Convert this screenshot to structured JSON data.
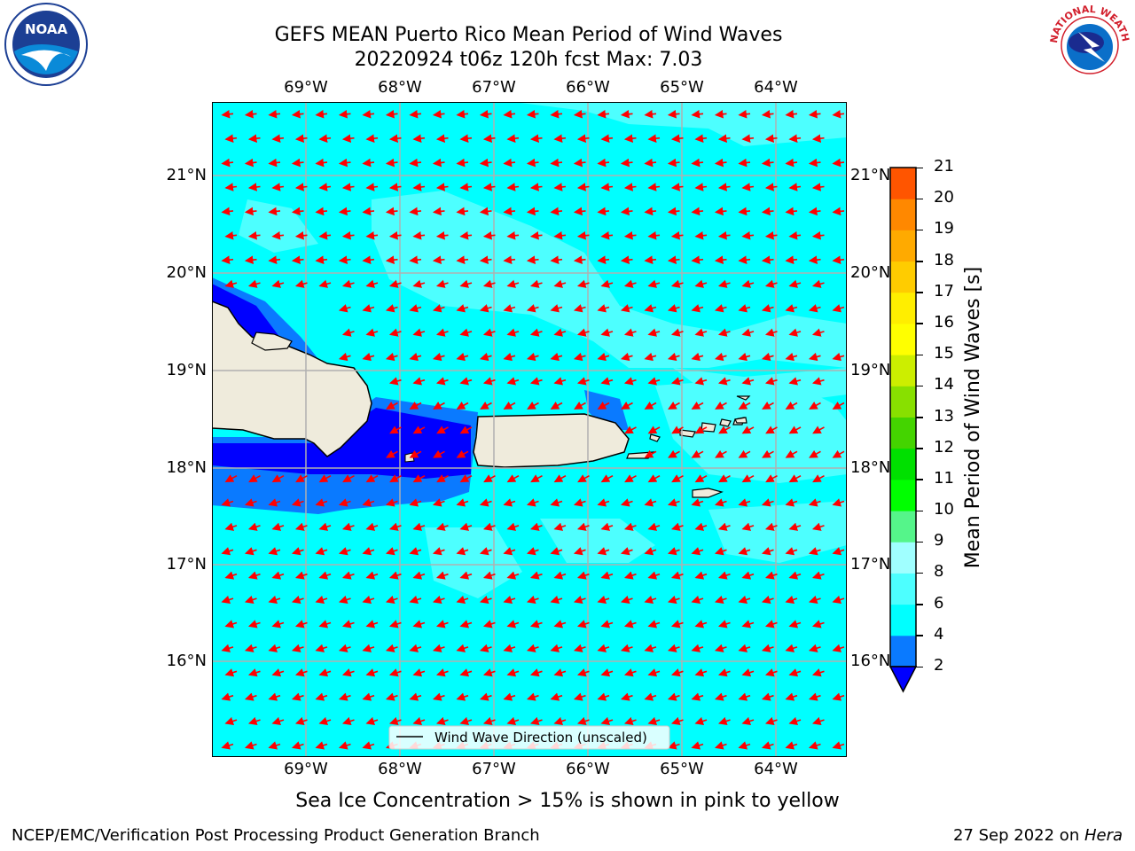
{
  "header": {
    "title_line1": "GEFS MEAN Puerto Rico Mean Period of Wind Waves",
    "title_line2": "20220924 t06z 120h fcst   Max: 7.03",
    "noaa_logo_text": "NOAA",
    "nws_logo_text": "NATIONAL WEATHER SERVICE"
  },
  "map": {
    "lon_labels": [
      "69°W",
      "68°W",
      "67°W",
      "66°W",
      "65°W",
      "64°W"
    ],
    "lat_labels": [
      "21°N",
      "20°N",
      "19°N",
      "18°N",
      "17°N",
      "16°N"
    ],
    "legend_label": "Wind Wave Direction (unscaled)",
    "arrow_color": "#ff0000",
    "land_color": "#efebdc"
  },
  "colorbar": {
    "label": "Mean Period of Wind Waves [s]",
    "levels": [
      "2",
      "4",
      "6",
      "8",
      "9",
      "10",
      "11",
      "12",
      "13",
      "14",
      "15",
      "16",
      "17",
      "18",
      "19",
      "20",
      "21"
    ],
    "colors": [
      "#0a7aff",
      "#00ffff",
      "#4dffff",
      "#a0ffff",
      "#55f58a",
      "#00ff00",
      "#00e000",
      "#44d400",
      "#88e000",
      "#ccee00",
      "#ffff00",
      "#ffee00",
      "#ffcc00",
      "#ffaa00",
      "#ff8800",
      "#ff5500",
      "#ff2a00",
      "#ff0000"
    ],
    "under_color": "#0000ff"
  },
  "caption": "Sea Ice Concentration > 15% is shown in pink to yellow",
  "footer": {
    "left": "NCEP/EMC/Verification Post Processing Product Generation Branch",
    "right_date": "27 Sep 2022 on ",
    "right_host": "Hera"
  }
}
